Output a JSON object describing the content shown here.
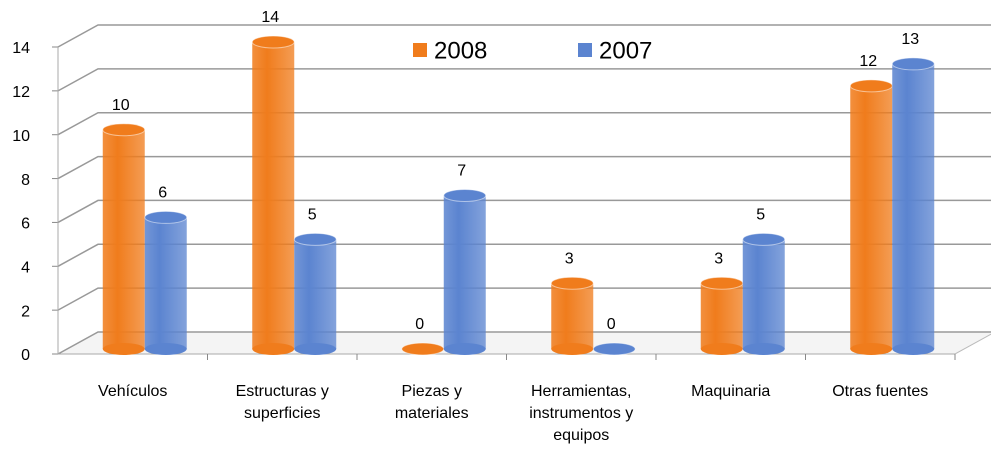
{
  "chart_data": {
    "type": "bar3d",
    "categories": [
      "Vehículos",
      "Estructuras y superficies",
      "Piezas y materiales",
      "Herramientas, instrumentos y equipos",
      "Maquinaria",
      "Otras fuentes"
    ],
    "series": [
      {
        "name": "2008",
        "color": "#f07c1c",
        "values": [
          10,
          14,
          0,
          3,
          3,
          12
        ]
      },
      {
        "name": "2007",
        "color": "#5b84d0",
        "values": [
          6,
          5,
          7,
          0,
          5,
          13
        ]
      }
    ],
    "ylim": [
      0,
      14
    ],
    "yticks": [
      0,
      2,
      4,
      6,
      8,
      10,
      12,
      14
    ],
    "grid": true,
    "legend": "top"
  }
}
